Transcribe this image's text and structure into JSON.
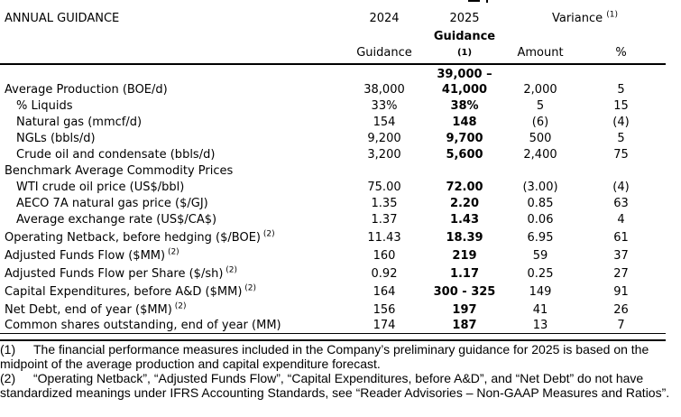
{
  "colors": {
    "text": "#000000",
    "background": "#ffffff",
    "rule": "#000000"
  },
  "header": {
    "title": "ANNUAL GUIDANCE",
    "col_2024": "2024",
    "col_2025": "2025",
    "variance_label": "Variance",
    "variance_sup": "(1)",
    "sub_2024": "Guidance",
    "sub_2025": "Guidance",
    "sub_2025_sup": "(1)",
    "sub_amount": "Amount",
    "sub_percent": "%"
  },
  "rows": [
    {
      "label": "Average Production (BOE/d)",
      "indent": false,
      "sup": "",
      "v2024": "38,000",
      "v2025": "39,000 –\n41,000",
      "amount": "2,000",
      "pct": "5"
    },
    {
      "label": "% Liquids",
      "indent": true,
      "sup": "",
      "v2024": "33%",
      "v2025": "38%",
      "amount": "5",
      "pct": "15"
    },
    {
      "label": "Natural gas (mmcf/d)",
      "indent": true,
      "sup": "",
      "v2024": "154",
      "v2025": "148",
      "amount": "(6)",
      "pct": "(4)"
    },
    {
      "label": "NGLs (bbls/d)",
      "indent": true,
      "sup": "",
      "v2024": "9,200",
      "v2025": "9,700",
      "amount": "500",
      "pct": "5"
    },
    {
      "label": "Crude oil and condensate (bbls/d)",
      "indent": true,
      "sup": "",
      "v2024": "3,200",
      "v2025": "5,600",
      "amount": "2,400",
      "pct": "75"
    },
    {
      "label": "Benchmark Average Commodity Prices",
      "indent": false,
      "sup": "",
      "v2024": "",
      "v2025": "",
      "amount": "",
      "pct": ""
    },
    {
      "label": "WTI crude oil price (US$/bbl)",
      "indent": true,
      "sup": "",
      "v2024": "75.00",
      "v2025": "72.00",
      "amount": "(3.00)",
      "pct": "(4)"
    },
    {
      "label": "AECO 7A natural gas price ($/GJ)",
      "indent": true,
      "sup": "",
      "v2024": "1.35",
      "v2025": "2.20",
      "amount": "0.85",
      "pct": "63"
    },
    {
      "label": "Average exchange rate (US$/CA$)",
      "indent": true,
      "sup": "",
      "v2024": "1.37",
      "v2025": "1.43",
      "amount": "0.06",
      "pct": "4"
    },
    {
      "label": "Operating Netback, before hedging ($/BOE)",
      "indent": false,
      "sup": "(2)",
      "v2024": "11.43",
      "v2025": "18.39",
      "amount": "6.95",
      "pct": "61"
    },
    {
      "label": "Adjusted Funds Flow ($MM)",
      "indent": false,
      "sup": "(2)",
      "v2024": "160",
      "v2025": "219",
      "amount": "59",
      "pct": "37"
    },
    {
      "label": "Adjusted Funds Flow per Share ($/sh)",
      "indent": false,
      "sup": "(2)",
      "v2024": "0.92",
      "v2025": "1.17",
      "amount": "0.25",
      "pct": "27"
    },
    {
      "label": "Capital Expenditures, before A&D ($MM)",
      "indent": false,
      "sup": "(2)",
      "v2024": "164",
      "v2025": "300 - 325",
      "amount": "149",
      "pct": "91"
    },
    {
      "label": "Net Debt, end of year ($MM)",
      "indent": false,
      "sup": "(2)",
      "v2024": "156",
      "v2025": "197",
      "amount": "41",
      "pct": "26"
    },
    {
      "label": "Common shares outstanding, end of year (MM)",
      "indent": false,
      "sup": "",
      "v2024": "174",
      "v2025": "187",
      "amount": "13",
      "pct": "7"
    }
  ],
  "footnotes": [
    {
      "num": "(1)",
      "text": "The financial performance measures included in the Company’s preliminary guidance for 2025 is based on the midpoint of the average production and capital expenditure forecast."
    },
    {
      "num": "(2)",
      "text": "“Operating Netback”, “Adjusted Funds Flow”, “Capital Expenditures, before A&D”, and “Net Debt” do not have standardized meanings under IFRS Accounting Standards, see “Reader Advisories – Non-GAAP Measures and Ratios”."
    }
  ]
}
